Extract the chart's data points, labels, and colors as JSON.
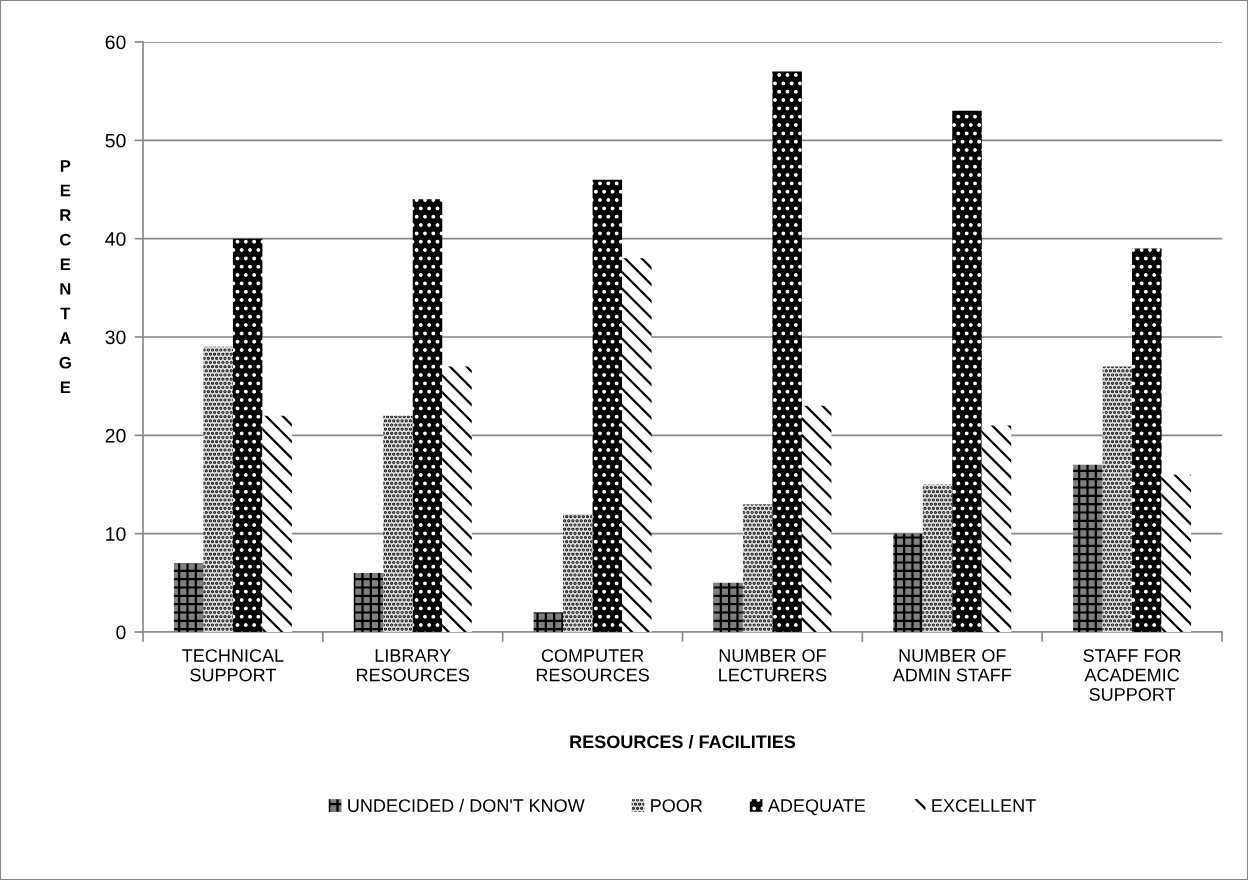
{
  "chart_data": {
    "type": "bar",
    "categories": [
      "TECHNICAL\nSUPPORT",
      "LIBRARY\nRESOURCES",
      "COMPUTER\nRESOURCES",
      "NUMBER OF\nLECTURERS",
      "NUMBER OF\nADMIN STAFF",
      "STAFF FOR\nACADEMIC\nSUPPORT"
    ],
    "series": [
      {
        "name": "UNDECIDED / DON'T KNOW",
        "color": "#808080",
        "values": [
          7,
          6,
          2,
          5,
          10,
          17
        ]
      },
      {
        "name": "POOR",
        "color": "#e0e0e0",
        "values": [
          29,
          22,
          12,
          13,
          15,
          27
        ]
      },
      {
        "name": "ADEQUATE",
        "color": "#000000",
        "values": [
          40,
          44,
          46,
          57,
          53,
          39
        ]
      },
      {
        "name": "EXCELLENT",
        "color": "#ffffff",
        "values": [
          22,
          27,
          38,
          23,
          21,
          16
        ]
      }
    ],
    "xlabel": "RESOURCES / FACILITIES",
    "ylabel": "PERCENTAGE",
    "ylim": [
      0,
      60
    ],
    "yticks": [
      0,
      10,
      20,
      30,
      40,
      50,
      60
    ],
    "grid": "y",
    "legend": "bottom"
  }
}
